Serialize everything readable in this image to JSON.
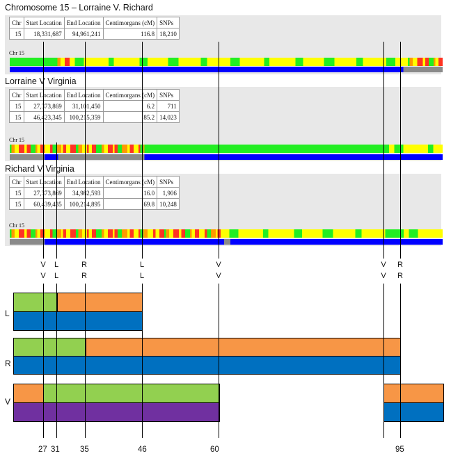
{
  "panels": [
    {
      "title": "Chromosome 15 – Lorraine V. Richard",
      "headers": [
        "Chr",
        "Start Location",
        "End Location",
        "Centimorgans (cM)",
        "SNPs"
      ],
      "rows": [
        [
          "15",
          "18,331,687",
          "94,961,241",
          "116.8",
          "18,210"
        ]
      ],
      "chr_label": "Chr 15",
      "color_track": [
        [
          "green",
          0,
          0.106
        ],
        [
          "mixed",
          0.106,
          0.138
        ],
        [
          "yellow",
          0.138,
          0.92
        ],
        [
          "mixed",
          0.92,
          1.0
        ]
      ],
      "match_track": [
        [
          "blue",
          0,
          0.909
        ],
        [
          "gray",
          0.909,
          1.0
        ]
      ]
    },
    {
      "title": "Lorraine V Virginia",
      "headers": [
        "Chr",
        "Start Location",
        "End Location",
        "Centimorgans (cM)",
        "SNPs"
      ],
      "rows": [
        [
          "15",
          "27,373,869",
          "31,101,450",
          "6.2",
          "711"
        ],
        [
          "15",
          "46,423,345",
          "100,215,359",
          "85.2",
          "14,023"
        ]
      ],
      "chr_label": "Chr 15",
      "color_track": [
        [
          "mixed",
          0,
          0.311
        ],
        [
          "green",
          0.311,
          0.876
        ],
        [
          "yellow",
          0.876,
          1.0
        ]
      ],
      "match_track": [
        [
          "gray",
          0,
          0.08
        ],
        [
          "blue",
          0.08,
          0.112
        ],
        [
          "gray",
          0.112,
          0.311
        ],
        [
          "blue",
          0.311,
          1.0
        ]
      ]
    },
    {
      "title": "Richard V Virginia",
      "headers": [
        "Chr",
        "Start Location",
        "End Location",
        "Centimorgans (cM)",
        "SNPs"
      ],
      "rows": [
        [
          "15",
          "27,373,869",
          "34,982,593",
          "16.0",
          "1,906"
        ],
        [
          "15",
          "60,439,435",
          "100,214,895",
          "69.8",
          "10,248"
        ]
      ],
      "chr_label": "Chr 15",
      "color_track": [
        [
          "mixed",
          0,
          0.495
        ],
        [
          "yellow",
          0.495,
          0.876
        ],
        [
          "green",
          0.876,
          0.91
        ],
        [
          "yellow",
          0.91,
          1.0
        ]
      ],
      "match_track": [
        [
          "gray",
          0,
          0.08
        ],
        [
          "blue",
          0.08,
          0.495
        ],
        [
          "gray",
          0.495,
          0.51
        ],
        [
          "blue",
          0.51,
          1.0
        ]
      ]
    }
  ],
  "marker_rows": [
    [
      "V",
      "L",
      "R",
      "L",
      "V",
      "V",
      "R"
    ],
    [
      "V",
      "L",
      "R",
      "L",
      "V",
      "V",
      "R"
    ]
  ],
  "rows": {
    "L": {
      "label": "L"
    },
    "R": {
      "label": "R"
    },
    "V": {
      "label": "V"
    }
  },
  "positions": [
    "27",
    "31",
    "35",
    "46",
    "60",
    "95"
  ],
  "colors": {
    "green": "#22ee22",
    "yellow": "#ffff00",
    "red": "#ff3322",
    "orange": "#ff9900",
    "blue": "#0000ff",
    "gray": "#8a8a8a",
    "block_green": "#92d050",
    "block_orange": "#f79646",
    "block_blue": "#0070c0",
    "block_purple": "#7030a0"
  }
}
